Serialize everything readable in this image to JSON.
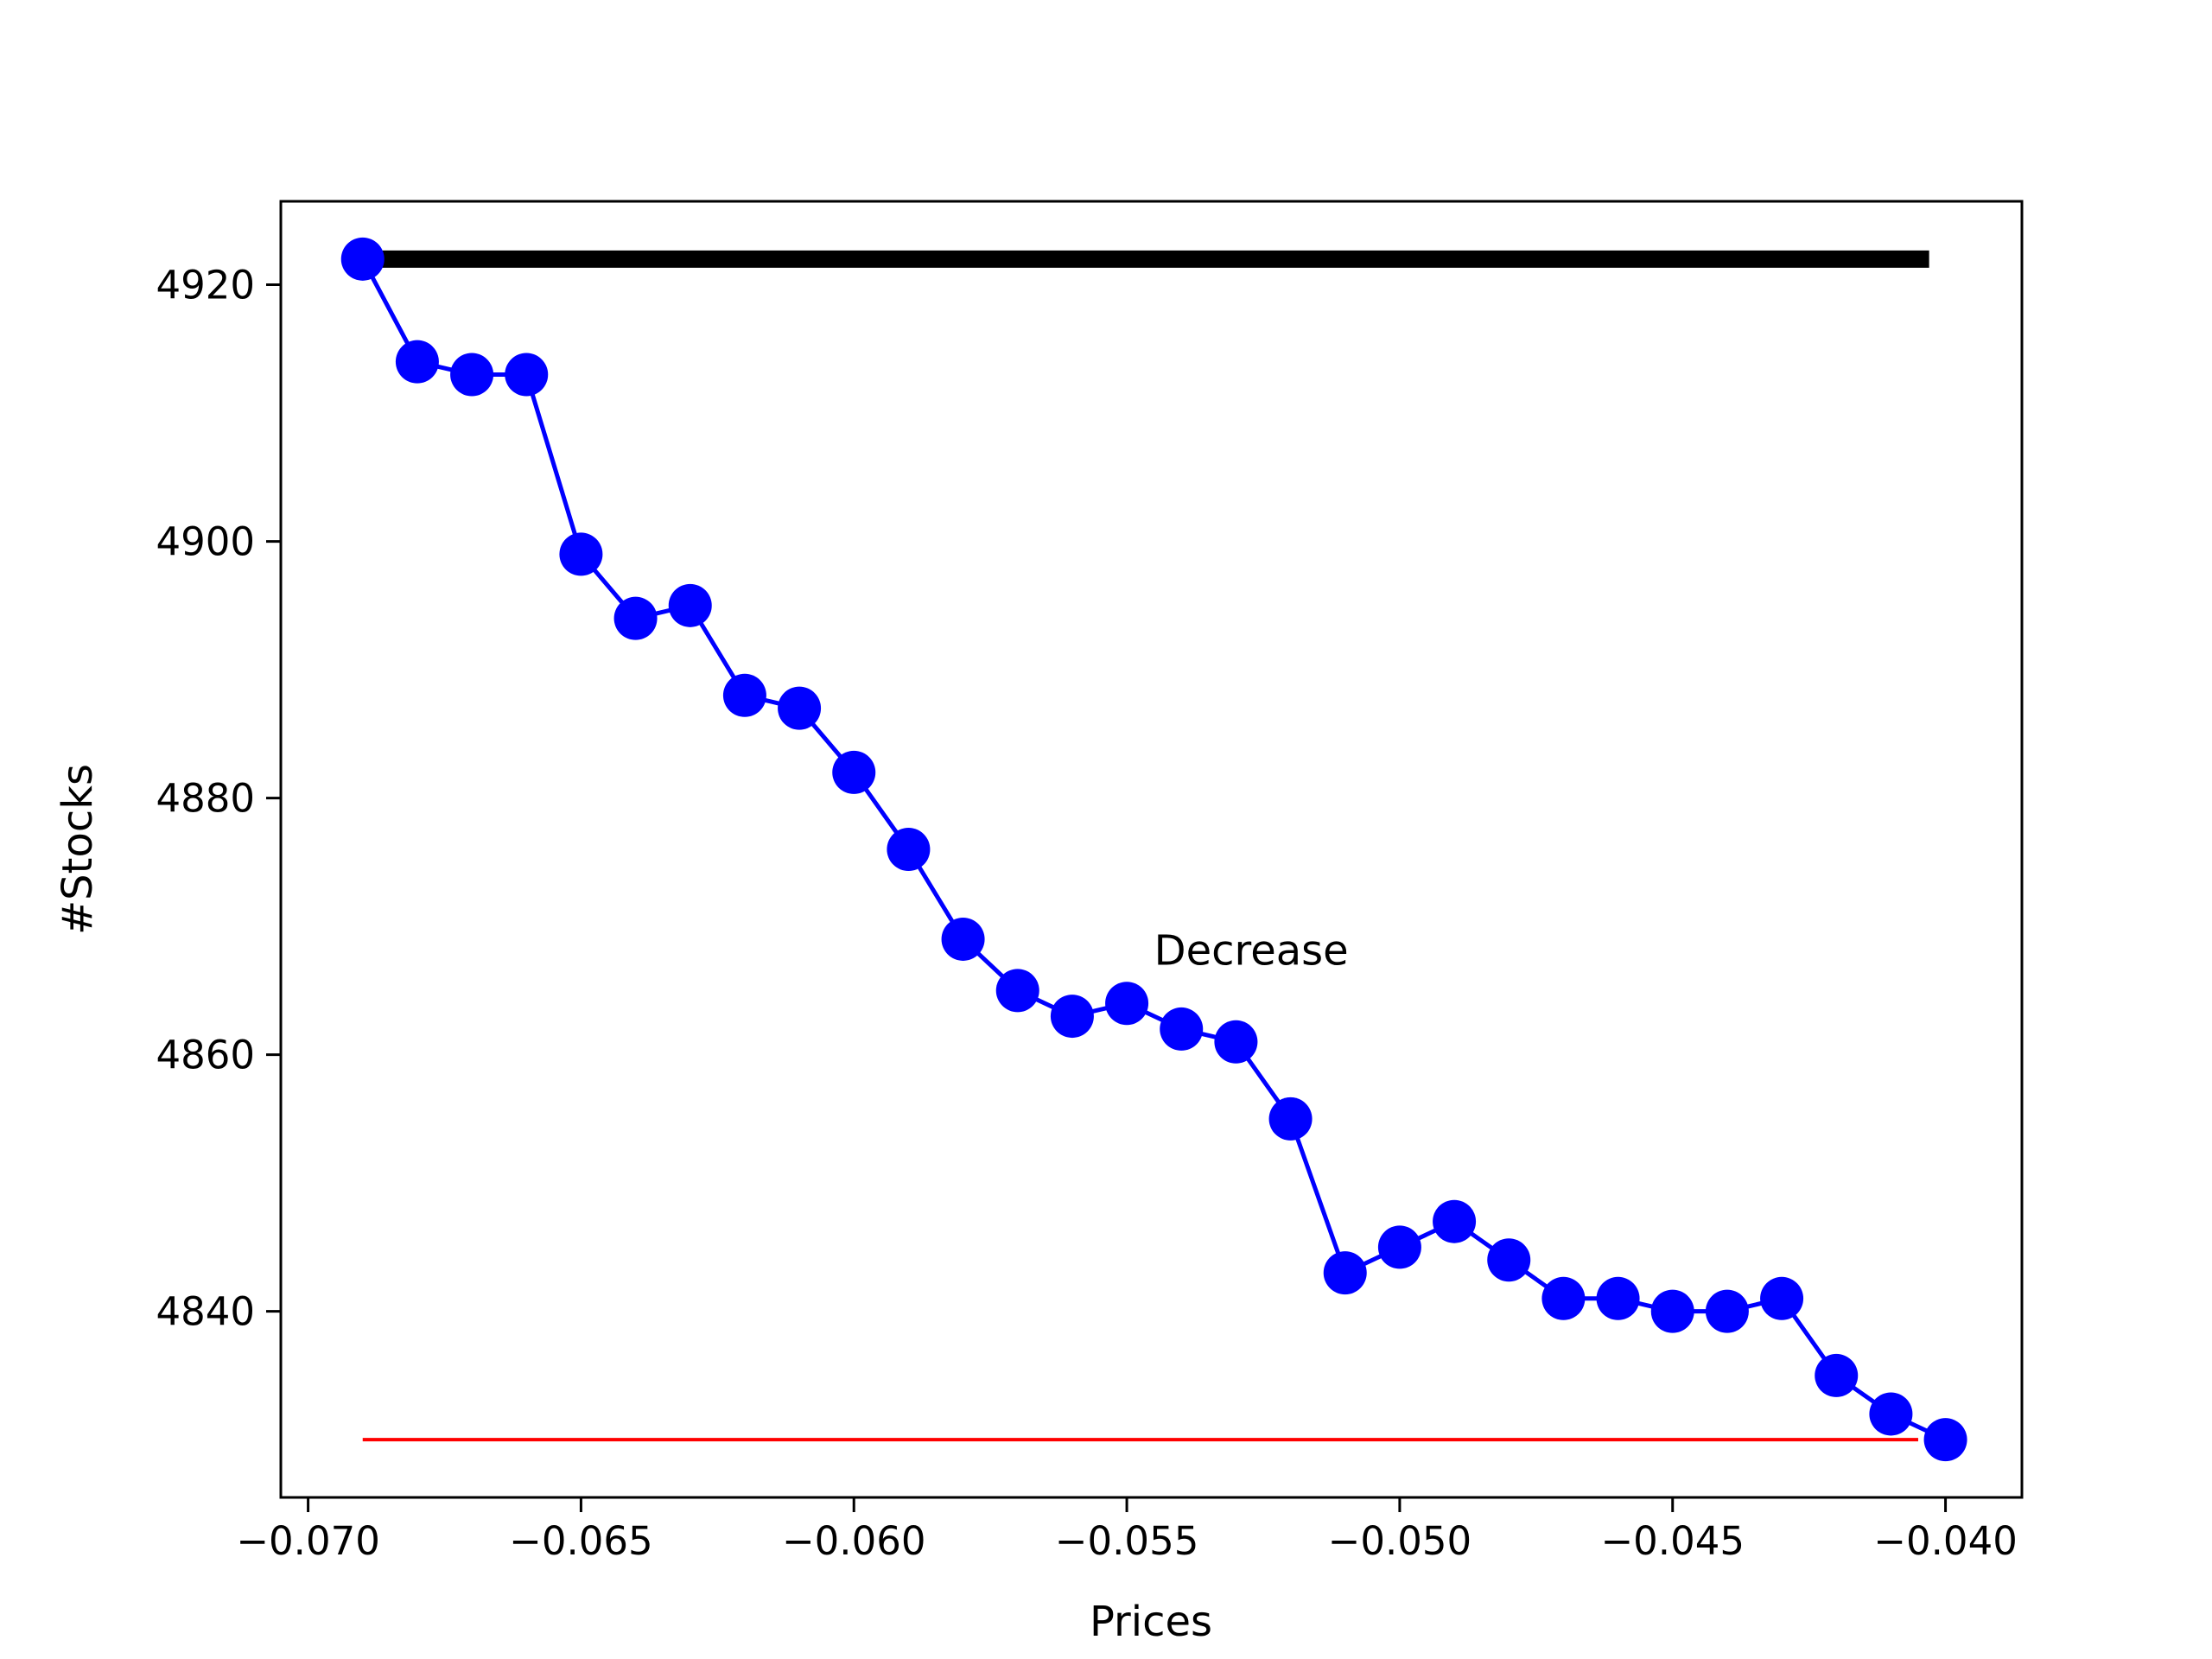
{
  "chart_data": {
    "type": "line",
    "title": "",
    "xlabel": "Prices",
    "ylabel": "#Stocks",
    "xlim": [
      -0.0705,
      -0.0386
    ],
    "ylim": [
      4825.5,
      4926.5
    ],
    "x_ticks": [
      -0.07,
      -0.065,
      -0.06,
      -0.055,
      -0.05,
      -0.045,
      -0.04
    ],
    "x_tick_labels": [
      "−0.070",
      "−0.065",
      "−0.060",
      "−0.055",
      "−0.050",
      "−0.045",
      "−0.040"
    ],
    "y_ticks": [
      4840,
      4860,
      4880,
      4900,
      4920
    ],
    "y_tick_labels": [
      "4840",
      "4860",
      "4880",
      "4900",
      "4920"
    ],
    "grid": false,
    "series": [
      {
        "color": "#0000ff",
        "marker": "circle",
        "x": [
          -0.069,
          -0.068,
          -0.067,
          -0.066,
          -0.065,
          -0.064,
          -0.063,
          -0.062,
          -0.061,
          -0.06,
          -0.059,
          -0.058,
          -0.057,
          -0.056,
          -0.055,
          -0.054,
          -0.053,
          -0.052,
          -0.051,
          -0.05,
          -0.049,
          -0.048,
          -0.047,
          -0.046,
          -0.045,
          -0.044,
          -0.043,
          -0.042,
          -0.041,
          -0.04
        ],
        "y": [
          4922,
          4914,
          4913,
          4913,
          4899,
          4894,
          4895,
          4888,
          4887,
          4882,
          4876,
          4869,
          4865,
          4863,
          4864,
          4862,
          4861,
          4855,
          4843,
          4845,
          4847,
          4844,
          4841,
          4841,
          4840,
          4840,
          4841,
          4835,
          4832,
          4830
        ]
      }
    ],
    "reference_lines": [
      {
        "x": [
          -0.069,
          -0.0403
        ],
        "y": 4922,
        "color": "#000000",
        "style": "thick"
      },
      {
        "x": [
          -0.069,
          -0.0405
        ],
        "y": 4830,
        "color": "#ff0000",
        "style": "thin"
      }
    ],
    "annotations": [
      {
        "text": "Decrease",
        "x": -0.0545,
        "y": 4867
      }
    ]
  }
}
